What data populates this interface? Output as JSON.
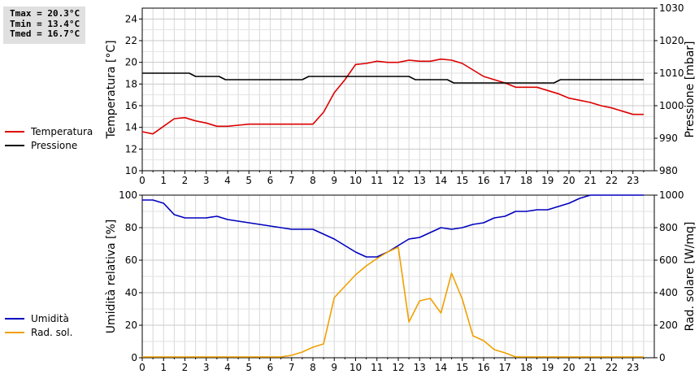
{
  "stats": {
    "tmax": "Tmax = 20.3°C",
    "tmin": "Tmin = 13.4°C",
    "tmed": "Tmed = 16.7°C"
  },
  "legend_top": [
    {
      "label": "Temperatura",
      "color": "#dd0000"
    },
    {
      "label": "Pressione",
      "color": "#000000"
    }
  ],
  "legend_bottom": [
    {
      "label": "Umidità",
      "color": "#0000c0"
    },
    {
      "label": "Rad. sol.",
      "color": "#f0a000"
    }
  ],
  "chart_data": [
    {
      "type": "line",
      "xlabel": "",
      "ylabel": "Temperatura [°C]",
      "y2label": "Pressione [mbar]",
      "xlim": [
        0,
        24
      ],
      "ylim": [
        10,
        25
      ],
      "y2lim": [
        980,
        1030
      ],
      "xticks": [
        "0",
        "1",
        "2",
        "3",
        "4",
        "5",
        "6",
        "7",
        "8",
        "9",
        "10",
        "11",
        "12",
        "13",
        "14",
        "15",
        "16",
        "17",
        "18",
        "19",
        "20",
        "21",
        "22",
        "23"
      ],
      "yticks": [
        "10",
        "12",
        "14",
        "16",
        "18",
        "20",
        "22",
        "24"
      ],
      "y2ticks": [
        "980",
        "990",
        "1000",
        "1010",
        "1020",
        "1030"
      ],
      "grid": true,
      "legend": "left",
      "series": [
        {
          "name": "Temperatura",
          "axis": "left",
          "color": "#dd0000",
          "x": [
            0,
            0.5,
            1,
            1.5,
            2,
            2.5,
            3,
            3.5,
            4,
            4.5,
            5,
            5.5,
            6,
            6.5,
            7,
            7.5,
            8,
            8.5,
            9,
            9.5,
            10,
            10.5,
            11,
            11.5,
            12,
            12.5,
            13,
            13.5,
            14,
            14.5,
            15,
            15.5,
            16,
            16.5,
            17,
            17.5,
            18,
            18.5,
            19,
            19.5,
            20,
            20.5,
            21,
            21.5,
            22,
            22.5,
            23,
            23.5
          ],
          "y": [
            13.6,
            13.4,
            14.1,
            14.8,
            14.9,
            14.6,
            14.4,
            14.1,
            14.1,
            14.2,
            14.3,
            14.3,
            14.3,
            14.3,
            14.3,
            14.3,
            14.3,
            15.4,
            17.2,
            18.4,
            19.8,
            19.9,
            20.1,
            20.0,
            20.0,
            20.2,
            20.1,
            20.1,
            20.3,
            20.2,
            19.9,
            19.3,
            18.7,
            18.4,
            18.1,
            17.7,
            17.7,
            17.7,
            17.4,
            17.1,
            16.7,
            16.5,
            16.3,
            16.0,
            15.8,
            15.5,
            15.2,
            15.2
          ]
        },
        {
          "name": "Pressione",
          "axis": "right",
          "color": "#000000",
          "x": [
            0,
            2.2,
            2.5,
            3.6,
            3.9,
            7.5,
            7.8,
            12.5,
            12.8,
            14.3,
            14.6,
            17.0,
            19.3,
            19.6,
            23.5
          ],
          "y": [
            1010,
            1010,
            1009,
            1009,
            1008,
            1008,
            1009,
            1009,
            1008,
            1008,
            1007,
            1007,
            1007,
            1008,
            1008
          ]
        }
      ]
    },
    {
      "type": "line",
      "xlabel": "",
      "ylabel": "Umidità relativa [%]",
      "y2label": "Rad. solare [W/mq]",
      "xlim": [
        0,
        24
      ],
      "ylim": [
        0,
        100
      ],
      "y2lim": [
        0,
        1000
      ],
      "xticks": [
        "0",
        "1",
        "2",
        "3",
        "4",
        "5",
        "6",
        "7",
        "8",
        "9",
        "10",
        "11",
        "12",
        "13",
        "14",
        "15",
        "16",
        "17",
        "18",
        "19",
        "20",
        "21",
        "22",
        "23"
      ],
      "yticks": [
        "0",
        "20",
        "40",
        "60",
        "80",
        "100"
      ],
      "y2ticks": [
        "0",
        "200",
        "400",
        "600",
        "800",
        "1000"
      ],
      "grid": true,
      "legend": "left",
      "series": [
        {
          "name": "Umidità",
          "axis": "left",
          "color": "#0000c0",
          "x": [
            0,
            0.5,
            1,
            1.5,
            2,
            2.5,
            3,
            3.5,
            4,
            4.5,
            5,
            5.5,
            6,
            6.5,
            7,
            7.5,
            8,
            8.5,
            9,
            9.5,
            10,
            10.5,
            11,
            11.5,
            12,
            12.5,
            13,
            13.5,
            14,
            14.5,
            15,
            15.5,
            16,
            16.5,
            17,
            17.5,
            18,
            18.5,
            19,
            19.5,
            20,
            20.5,
            21,
            21.5,
            22,
            22.5,
            23,
            23.5
          ],
          "y": [
            97,
            97,
            95,
            88,
            86,
            86,
            86,
            87,
            85,
            84,
            83,
            82,
            81,
            80,
            79,
            79,
            79,
            76,
            73,
            69,
            65,
            62,
            62,
            65,
            69,
            73,
            74,
            77,
            80,
            79,
            80,
            82,
            83,
            86,
            87,
            90,
            90,
            91,
            91,
            93,
            95,
            98,
            100,
            100,
            100,
            100,
            100,
            100
          ]
        },
        {
          "name": "Rad. sol.",
          "axis": "right",
          "color": "#f0a000",
          "x": [
            0,
            0.5,
            1,
            1.5,
            2,
            2.5,
            3,
            3.5,
            4,
            4.5,
            5,
            5.5,
            6,
            6.5,
            7,
            7.5,
            8,
            8.5,
            9,
            9.5,
            10,
            10.5,
            11,
            11.5,
            12,
            12.5,
            13,
            13.5,
            14,
            14.5,
            15,
            15.5,
            16,
            16.5,
            17,
            17.5,
            18,
            18.5,
            19,
            19.5,
            20,
            20.5,
            21,
            21.5,
            22,
            22.5,
            23,
            23.5
          ],
          "y": [
            5,
            5,
            5,
            5,
            5,
            5,
            5,
            5,
            5,
            5,
            5,
            5,
            5,
            5,
            15,
            35,
            65,
            85,
            370,
            440,
            510,
            565,
            610,
            650,
            680,
            220,
            350,
            365,
            275,
            520,
            360,
            135,
            105,
            50,
            30,
            5,
            5,
            5,
            5,
            5,
            5,
            5,
            5,
            5,
            5,
            5,
            5,
            5
          ]
        }
      ]
    }
  ]
}
